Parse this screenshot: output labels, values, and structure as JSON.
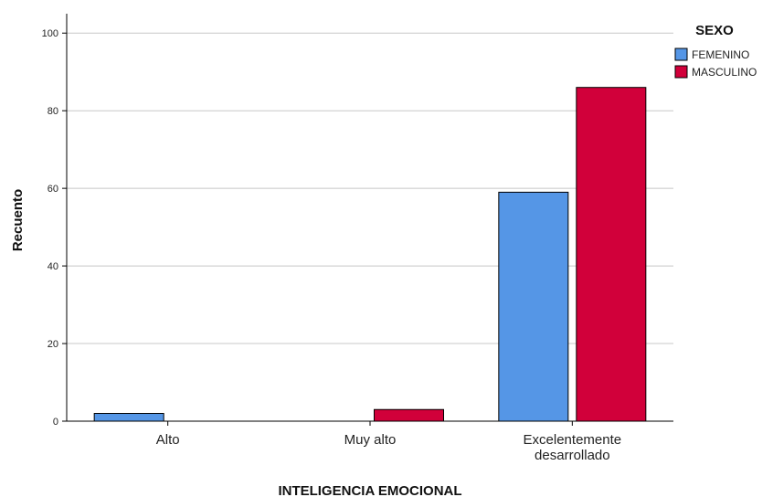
{
  "chart_data": {
    "type": "bar",
    "categories": [
      "Alto",
      "Muy alto",
      "Excelentemente desarrollado"
    ],
    "category_lines": [
      [
        "Alto"
      ],
      [
        "Muy alto"
      ],
      [
        "Excelentemente",
        "desarrollado"
      ]
    ],
    "series": [
      {
        "name": "FEMENINO",
        "color": "#5596e6",
        "values": [
          2,
          0,
          59
        ]
      },
      {
        "name": "MASCULINO",
        "color": "#d1003a",
        "values": [
          0,
          3,
          86
        ]
      }
    ],
    "xlabel": "INTELIGENCIA EMOCIONAL",
    "ylabel": "Recuento",
    "ylim": [
      0,
      105
    ],
    "yticks": [
      0,
      20,
      40,
      60,
      80,
      100
    ],
    "grid": true,
    "legend": {
      "title": "SEXO",
      "position": "top-right"
    }
  }
}
